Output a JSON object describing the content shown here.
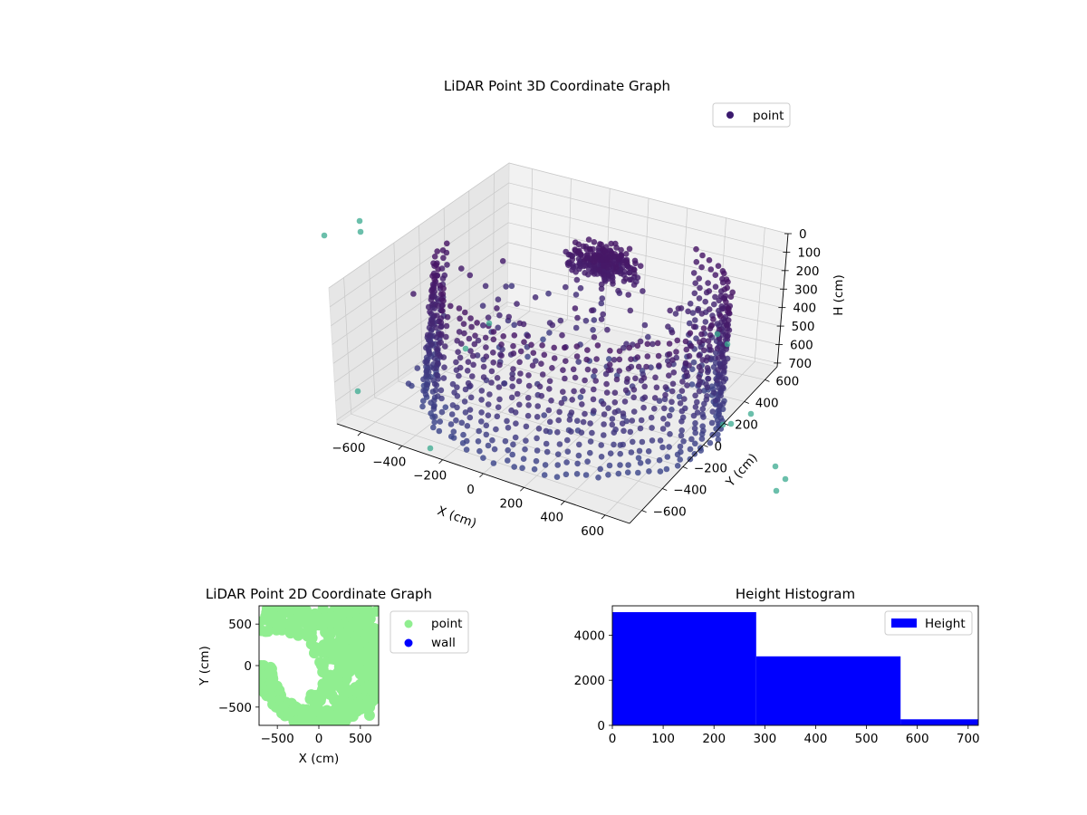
{
  "chart_data": [
    {
      "type": "scatter3d",
      "title": "LiDAR Point 3D Coordinate Graph",
      "xlabel": "X (cm)",
      "ylabel": "Y (cm)",
      "zlabel": "H (cm)",
      "xlim": [
        -720,
        720
      ],
      "ylim": [
        -720,
        720
      ],
      "zlim": [
        0,
        720
      ],
      "z_inverted": true,
      "x_ticks": [
        "−600",
        "−400",
        "−200",
        "0",
        "200",
        "400",
        "600"
      ],
      "y_ticks": [
        "−600",
        "−400",
        "−200",
        "0",
        "200",
        "400",
        "600"
      ],
      "z_ticks": [
        "0",
        "100",
        "200",
        "300",
        "400",
        "500",
        "600",
        "700"
      ],
      "grid": true,
      "legend": {
        "position": "top-right",
        "entries": [
          {
            "label": "point",
            "color": "#3b1a6e"
          }
        ]
      },
      "colormap": "viridis",
      "description_shape": "curved wall of points along a ~700 cm radius arc plus dense cluster near center"
    },
    {
      "type": "scatter",
      "title": "LiDAR Point 2D Coordinate Graph",
      "xlabel": "X (cm)",
      "ylabel": "Y (cm)",
      "xlim": [
        -720,
        720
      ],
      "ylim": [
        -720,
        720
      ],
      "x_ticks": [
        "−500",
        "0",
        "500"
      ],
      "y_ticks": [
        "−500",
        "0",
        "500"
      ],
      "series": [
        {
          "name": "point",
          "color": "#90ee90"
        },
        {
          "name": "wall",
          "color": "#0000ff"
        }
      ],
      "legend": {
        "position": "outside-right",
        "entries": [
          {
            "label": "point",
            "color": "#90ee90"
          },
          {
            "label": "wall",
            "color": "#0000ff"
          }
        ]
      }
    },
    {
      "type": "bar",
      "title": "Height Histogram",
      "xlim": [
        0,
        720
      ],
      "ylim": [
        0,
        5300
      ],
      "x_ticks": [
        "0",
        "100",
        "200",
        "300",
        "400",
        "500",
        "600",
        "700"
      ],
      "y_ticks": [
        "0",
        "2000",
        "4000"
      ],
      "bins": [
        {
          "x0": 0,
          "x1": 283,
          "count": 5020
        },
        {
          "x0": 283,
          "x1": 567,
          "count": 3060
        },
        {
          "x0": 567,
          "x1": 720,
          "count": 270
        }
      ],
      "series": [
        {
          "name": "Height",
          "color": "#0000ff"
        }
      ],
      "legend": {
        "position": "top-right",
        "entries": [
          {
            "label": "Height",
            "color": "#0000ff"
          }
        ]
      }
    }
  ]
}
